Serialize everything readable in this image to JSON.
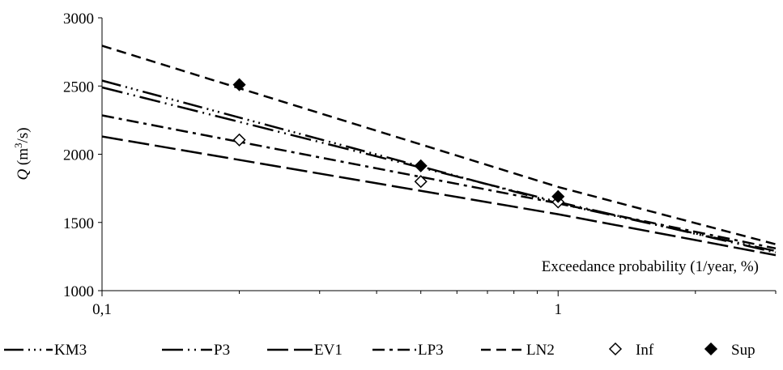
{
  "chart_data": {
    "type": "line",
    "xscale": "log",
    "x_axis_label": "Exceedance probability (1/year, %)",
    "y_axis_label": {
      "symbol": "Q",
      "unit_prefix": " (m",
      "unit_exp": "3",
      "unit_suffix": "/s)"
    },
    "xlim": [
      0.1,
      3.0
    ],
    "ylim": [
      1000,
      3000
    ],
    "x_ticks": [
      {
        "value": 0.1,
        "label": "0,1"
      },
      {
        "value": 1,
        "label": "1"
      }
    ],
    "y_ticks": [
      {
        "value": 1000,
        "label": "1000"
      },
      {
        "value": 1500,
        "label": "1500"
      },
      {
        "value": 2000,
        "label": "2000"
      },
      {
        "value": 2500,
        "label": "2500"
      },
      {
        "value": 3000,
        "label": "3000"
      }
    ],
    "grid": false,
    "legend_position": "bottom",
    "series": [
      {
        "name": "KM3",
        "kind": "line",
        "color": "#000000",
        "dash": "long-dot-dot-dot",
        "points": [
          [
            0.1,
            2540
          ],
          [
            1.0,
            1640
          ],
          [
            3.0,
            1290
          ]
        ]
      },
      {
        "name": "P3",
        "kind": "line",
        "color": "#000000",
        "dash": "long-dot-dot",
        "points": [
          [
            0.1,
            2490
          ],
          [
            1.0,
            1650
          ],
          [
            3.0,
            1280
          ]
        ]
      },
      {
        "name": "EV1",
        "kind": "line",
        "color": "#000000",
        "dash": "long-dash",
        "points": [
          [
            0.1,
            2130
          ],
          [
            1.0,
            1560
          ],
          [
            3.0,
            1260
          ]
        ]
      },
      {
        "name": "LP3",
        "kind": "line",
        "color": "#000000",
        "dash": "dash-dot",
        "points": [
          [
            0.1,
            2285
          ],
          [
            1.0,
            1640
          ],
          [
            3.0,
            1310
          ]
        ]
      },
      {
        "name": "LN2",
        "kind": "line",
        "color": "#000000",
        "dash": "short-dash",
        "points": [
          [
            0.1,
            2795
          ],
          [
            1.0,
            1760
          ],
          [
            3.0,
            1340
          ]
        ]
      },
      {
        "name": "Inf",
        "kind": "marker",
        "marker": "diamond-open",
        "color": "#000000",
        "points": [
          [
            0.2,
            2105
          ],
          [
            0.5,
            1800
          ],
          [
            1.0,
            1650
          ]
        ]
      },
      {
        "name": "Sup",
        "kind": "marker",
        "marker": "diamond-filled",
        "color": "#000000",
        "points": [
          [
            0.2,
            2510
          ],
          [
            0.5,
            1915
          ],
          [
            1.0,
            1690
          ]
        ]
      }
    ]
  }
}
